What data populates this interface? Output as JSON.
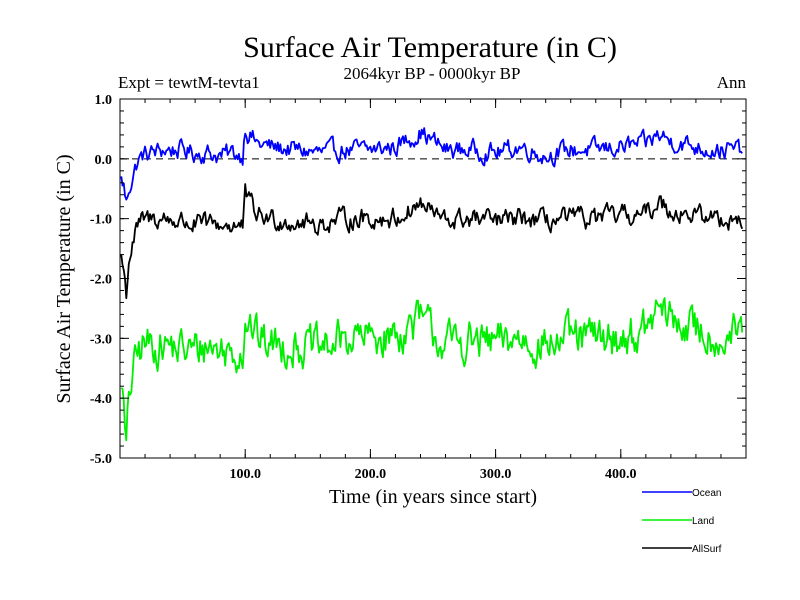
{
  "chart_data": {
    "type": "line",
    "title": "Surface Air Temperature (in C)",
    "subtitle_left": "Expt = tewtM-tevta1",
    "subtitle_center": "2064kyr BP - 0000kyr BP",
    "subtitle_right": "Ann",
    "xlabel": "Time (in years since start)",
    "ylabel": "Surface Air Temperature (in C)",
    "xlim": [
      0,
      500
    ],
    "ylim": [
      -5.0,
      1.0
    ],
    "xticks": [
      100,
      200,
      300,
      400
    ],
    "xtick_labels": [
      "100.0",
      "200.0",
      "300.0",
      "400.0"
    ],
    "yticks": [
      1.0,
      0.0,
      -1.0,
      -2.0,
      -3.0,
      -4.0,
      -5.0
    ],
    "ytick_labels": [
      "1.0",
      "0.0",
      "-1.0",
      "-2.0",
      "-3.0",
      "-4.0",
      "-5.0"
    ],
    "zero_line": "dashed",
    "legend_position": "bottom-right",
    "series": [
      {
        "name": "Ocean",
        "color": "#0000ff",
        "x": [
          1,
          3,
          5,
          7,
          10,
          14,
          18,
          25,
          35,
          50,
          60,
          70,
          80,
          90,
          98,
          100,
          102,
          110,
          120,
          140,
          160,
          180,
          200,
          220,
          240,
          260,
          280,
          300,
          320,
          340,
          360,
          380,
          400,
          420,
          430,
          440,
          460,
          480,
          497
        ],
        "values": [
          -0.35,
          -0.45,
          -0.75,
          -0.5,
          -0.3,
          -0.05,
          0.05,
          0.1,
          0.15,
          0.15,
          0.1,
          0.1,
          0.05,
          0.1,
          0.05,
          0.55,
          0.45,
          0.25,
          0.2,
          0.15,
          0.1,
          0.15,
          0.15,
          0.2,
          0.45,
          0.15,
          0.15,
          0.1,
          0.2,
          0.05,
          0.15,
          0.15,
          0.2,
          0.25,
          0.4,
          0.3,
          0.2,
          0.15,
          0.15
        ],
        "noise": 0.13
      },
      {
        "name": "Land",
        "color": "#00ee00",
        "x": [
          1,
          3,
          5,
          7,
          10,
          14,
          18,
          25,
          35,
          50,
          60,
          70,
          80,
          90,
          98,
          100,
          102,
          110,
          120,
          140,
          160,
          180,
          200,
          220,
          240,
          260,
          280,
          300,
          320,
          340,
          360,
          380,
          400,
          420,
          430,
          440,
          460,
          480,
          497
        ],
        "values": [
          -3.6,
          -4.2,
          -5.0,
          -4.0,
          -3.6,
          -3.3,
          -3.1,
          -3.1,
          -3.1,
          -3.2,
          -3.2,
          -3.1,
          -3.2,
          -3.2,
          -3.2,
          -2.6,
          -2.7,
          -3.0,
          -3.1,
          -3.1,
          -3.2,
          -3.0,
          -3.0,
          -2.95,
          -2.7,
          -3.1,
          -3.05,
          -3.1,
          -3.0,
          -3.1,
          -3.0,
          -3.0,
          -3.0,
          -2.9,
          -2.5,
          -2.7,
          -2.85,
          -3.0,
          -2.9
        ],
        "noise": 0.28
      },
      {
        "name": "AllSurf",
        "color": "#000000",
        "x": [
          1,
          3,
          5,
          7,
          10,
          14,
          18,
          25,
          35,
          50,
          60,
          70,
          80,
          90,
          98,
          100,
          102,
          110,
          120,
          140,
          160,
          180,
          200,
          220,
          240,
          260,
          280,
          300,
          320,
          340,
          360,
          380,
          400,
          420,
          430,
          440,
          460,
          480,
          497
        ],
        "values": [
          -1.6,
          -1.9,
          -2.25,
          -1.7,
          -1.4,
          -1.15,
          -1.05,
          -1.0,
          -1.0,
          -1.05,
          -1.1,
          -1.1,
          -1.1,
          -1.1,
          -1.15,
          -0.6,
          -0.7,
          -0.95,
          -1.0,
          -1.05,
          -1.1,
          -1.0,
          -1.0,
          -1.0,
          -0.75,
          -1.05,
          -1.0,
          -1.05,
          -1.0,
          -1.05,
          -1.0,
          -1.0,
          -0.95,
          -0.95,
          -0.7,
          -0.85,
          -0.95,
          -1.0,
          -1.0
        ],
        "noise": 0.14
      }
    ]
  }
}
